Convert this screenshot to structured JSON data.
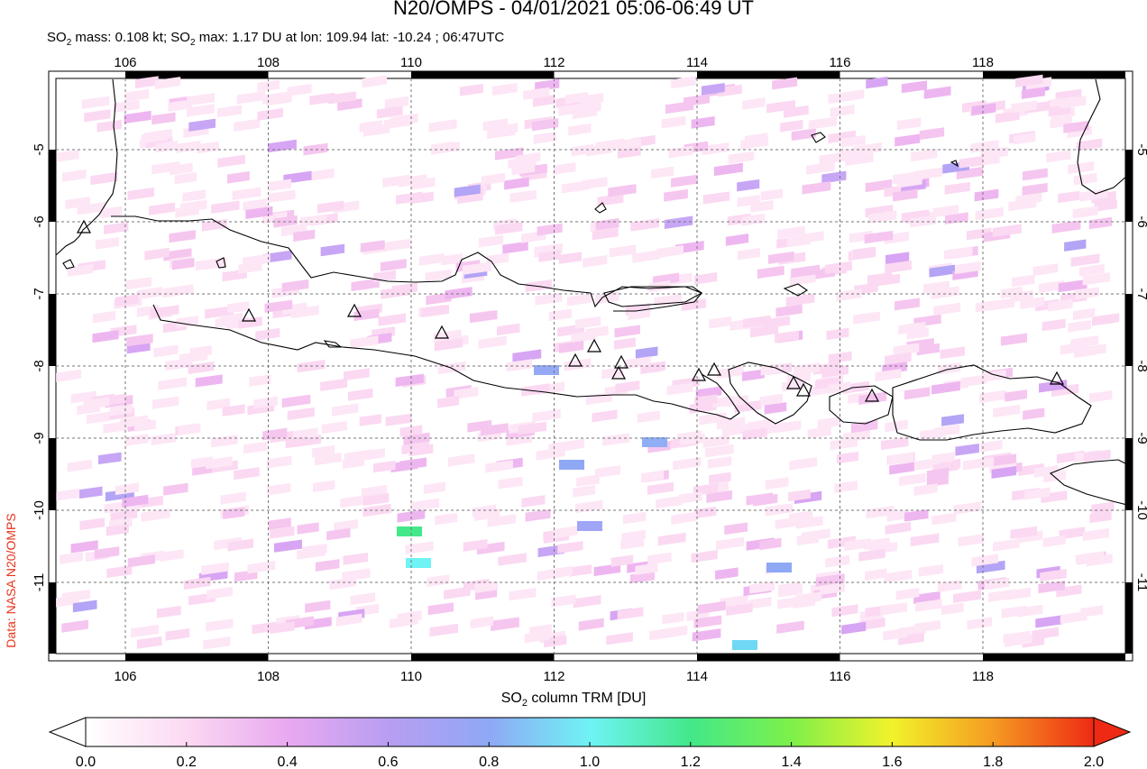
{
  "header": {
    "title": "N20/OMPS - 04/01/2021 05:06-06:49 UT",
    "subtitle_prefix": "SO",
    "subtitle_mid1": " mass: 0.108 kt; SO",
    "subtitle_mid2": " max: 1.17 DU at lon: 109.94 lat: -10.24 ; 06:47UTC",
    "subscript": "2"
  },
  "credit": "Data: NASA N20/OMPS",
  "map": {
    "region": "Java / Bali / Lombok",
    "lon_ticks": [
      "106",
      "108",
      "110",
      "112",
      "114",
      "116",
      "118"
    ],
    "lat_ticks": [
      "-5",
      "-6",
      "-7",
      "-8",
      "-9",
      "-10",
      "-11"
    ],
    "lon_range": [
      105.0,
      120.0
    ],
    "lat_range": [
      -12.0,
      -4.0
    ],
    "grid": true,
    "volcano_marker": "triangle-icon"
  },
  "colorbar": {
    "label_prefix": "SO",
    "label_sub": "2",
    "label_suffix": " column TRM [DU]",
    "ticks": [
      "0.0",
      "0.2",
      "0.4",
      "0.6",
      "0.8",
      "1.0",
      "1.2",
      "1.4",
      "1.6",
      "1.8",
      "2.0"
    ],
    "range": [
      0.0,
      2.0
    ],
    "colors": [
      "#ffffff",
      "#fbd9f2",
      "#e9a9f0",
      "#b89ef2",
      "#8fa8f5",
      "#6ff3f5",
      "#43e88a",
      "#7ef04a",
      "#f2f22a",
      "#f59b22",
      "#ee2a14"
    ]
  }
}
